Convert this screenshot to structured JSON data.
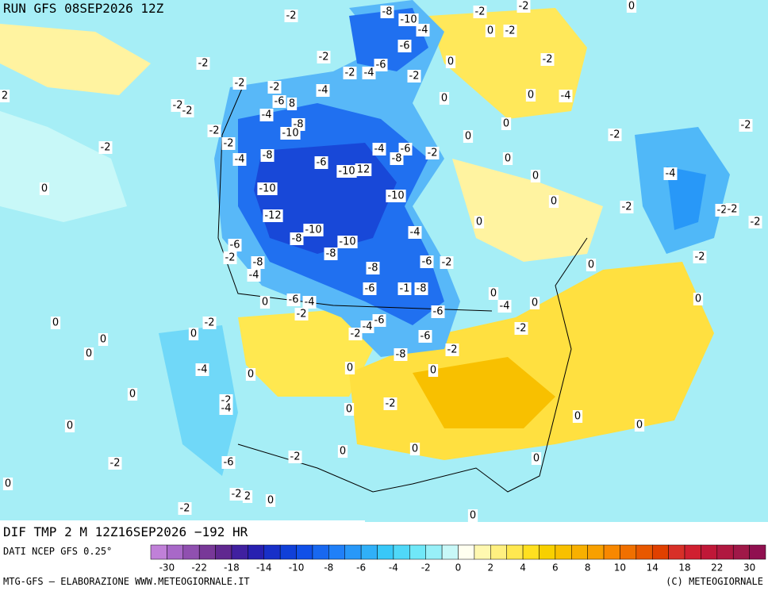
{
  "header": {
    "title": "RUN GFS 08SEP2026 12Z"
  },
  "map": {
    "subtitle": "DIF TMP 2 M 12Z16SEP2026 −192 HR",
    "contour_labels": [
      -2,
      -8,
      -10,
      -4,
      -2,
      -2,
      0,
      0,
      -2,
      -6,
      -6,
      -4,
      -2,
      -2,
      -2,
      0,
      -2,
      -2,
      -2,
      -2,
      -4,
      2,
      -2,
      -2,
      -6,
      8,
      0,
      0,
      -4,
      -4,
      -8,
      -10,
      -2,
      0,
      0,
      -2,
      -2,
      -2,
      -2,
      -4,
      -6,
      -2,
      -8,
      -8,
      -4,
      -6,
      -10,
      12,
      0,
      0,
      -4,
      0,
      -10,
      -10,
      0,
      -2,
      -2,
      -2,
      -2,
      -12,
      0,
      -10,
      -8,
      -4,
      -10,
      -6,
      -8,
      -2,
      -8,
      -6,
      -2,
      -2,
      0,
      -8,
      -4,
      -6,
      -1,
      -8,
      0,
      0,
      -6,
      -4,
      -4,
      0,
      0,
      -2,
      0,
      -2,
      -6,
      -4,
      -2,
      -6,
      -2,
      0,
      0,
      -6,
      -2,
      0,
      -8,
      -4,
      0,
      0,
      0,
      0,
      -2,
      -4,
      -2,
      0,
      0,
      0,
      0,
      -2,
      0,
      0,
      -6,
      -2,
      0,
      0,
      -2,
      2,
      0,
      -2,
      0
    ]
  },
  "footer": {
    "source": "DATI NCEP GFS 0.25°",
    "credit": "MTG-GFS — ELABORAZIONE WWW.METEOGIORNALE.IT",
    "copyright": "(C) METEOGIORNALE"
  },
  "colorbar": {
    "colors": [
      "#c080d8",
      "#a868c8",
      "#9050b0",
      "#783898",
      "#602890",
      "#4020a0",
      "#2820b0",
      "#1830c8",
      "#1040d8",
      "#1050e8",
      "#1868f0",
      "#2080f8",
      "#2898f8",
      "#30b0f8",
      "#38c8f8",
      "#50d8f8",
      "#70e8f8",
      "#98f0f8",
      "#c8f8f8",
      "#fffff0",
      "#fff8b0",
      "#fff080",
      "#ffe850",
      "#ffe020",
      "#f8d000",
      "#f8c000",
      "#f8b000",
      "#f8a000",
      "#f88800",
      "#f07000",
      "#e85800",
      "#e04000",
      "#d83028",
      "#d02030",
      "#c01838",
      "#b01840",
      "#a01848",
      "#901050"
    ],
    "labels": [
      -30,
      -22,
      -18,
      -14,
      -10,
      -8,
      -6,
      -4,
      -2,
      0,
      2,
      4,
      6,
      8,
      10,
      14,
      18,
      22,
      30
    ]
  }
}
